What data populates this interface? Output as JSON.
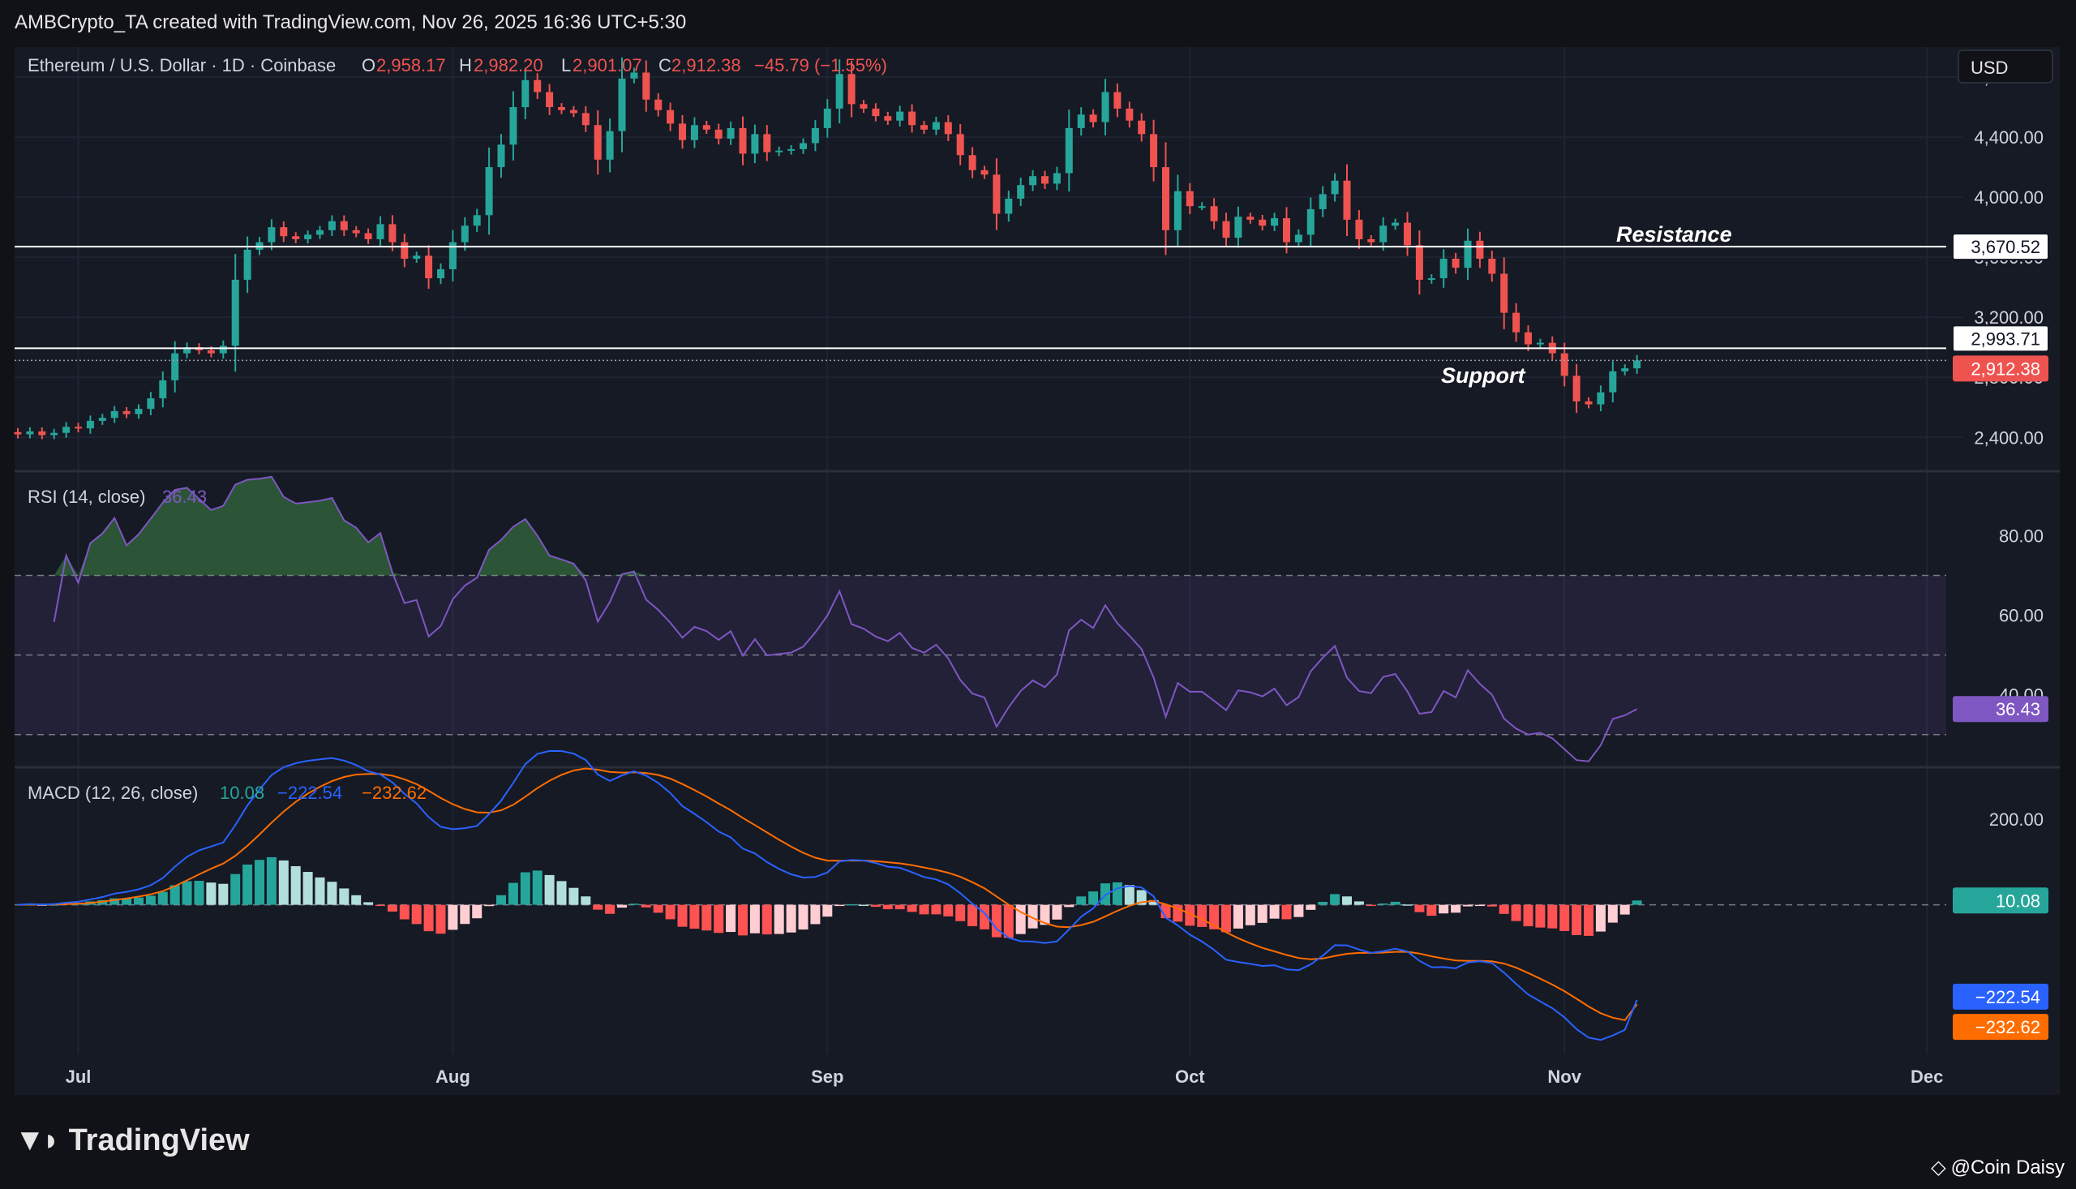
{
  "header": {
    "attribution": "AMBCrypto_TA created with TradingView.com, Nov 26, 2025 16:36 UTC+5:30",
    "currency_button": "USD"
  },
  "footer": {
    "brand": "TradingView",
    "credit": "@Coin Daisy"
  },
  "colors": {
    "background": "#111217",
    "pane": "#161a25",
    "up": "#26a69a",
    "down": "#ef5350",
    "rsi_line": "#7e57c2",
    "macd_line": "#2962ff",
    "signal_line": "#ff6d00",
    "hist_up_strong": "#26a69a",
    "hist_up_weak": "#b2dfdb",
    "hist_down_strong": "#ff5252",
    "hist_down_weak": "#ffcdd2"
  },
  "chart_data": [
    {
      "type": "candlestick",
      "legend": {
        "symbol": "Ethereum / U.S. Dollar · 1D · Coinbase",
        "o_label": "O",
        "o_value": "2,958.17",
        "h_label": "H",
        "h_value": "2,982.20",
        "l_label": "L",
        "l_value": "2,901.07",
        "c_label": "C",
        "c_value": "2,912.38",
        "change": "−45.79 (−1.55%)"
      },
      "x_ticks": [
        {
          "label": "Jul",
          "date": "2025-07-01"
        },
        {
          "label": "Aug",
          "date": "2025-08-01"
        },
        {
          "label": "Sep",
          "date": "2025-09-01"
        },
        {
          "label": "Oct",
          "date": "2025-10-01"
        },
        {
          "label": "Nov",
          "date": "2025-11-01"
        },
        {
          "label": "Dec",
          "date": "2025-12-01"
        }
      ],
      "y_ticks": [
        "2,400.00",
        "2,800.00",
        "3,200.00",
        "3,600.00",
        "4,000.00",
        "4,400.00",
        "4,800.00"
      ],
      "y_range": [
        2180,
        5000
      ],
      "levels": [
        {
          "name": "Resistance",
          "value": 3670.52,
          "label": "3,670.52"
        },
        {
          "name": "Support",
          "value": 2993.71,
          "label": "2,993.71"
        }
      ],
      "last_price": {
        "value": 2912.38,
        "label": "2,912.38"
      },
      "start_date": "2025-06-26",
      "closes": [
        2420,
        2440,
        2415,
        2430,
        2470,
        2460,
        2510,
        2530,
        2575,
        2555,
        2590,
        2660,
        2780,
        2960,
        3000,
        2980,
        2960,
        3010,
        3450,
        3650,
        3700,
        3800,
        3740,
        3720,
        3750,
        3780,
        3840,
        3780,
        3760,
        3720,
        3820,
        3700,
        3590,
        3610,
        3460,
        3520,
        3700,
        3810,
        3880,
        4200,
        4350,
        4600,
        4780,
        4700,
        4600,
        4580,
        4560,
        4480,
        4250,
        4440,
        4790,
        4830,
        4650,
        4580,
        4490,
        4380,
        4480,
        4450,
        4390,
        4460,
        4290,
        4420,
        4300,
        4310,
        4320,
        4360,
        4460,
        4590,
        4820,
        4620,
        4590,
        4540,
        4510,
        4570,
        4480,
        4450,
        4500,
        4420,
        4280,
        4180,
        4150,
        3890,
        3990,
        4080,
        4140,
        4090,
        4160,
        4460,
        4550,
        4500,
        4700,
        4590,
        4510,
        4420,
        4200,
        3780,
        4040,
        3940,
        3940,
        3840,
        3730,
        3870,
        3850,
        3810,
        3860,
        3700,
        3750,
        3920,
        4020,
        4110,
        3850,
        3720,
        3700,
        3810,
        3830,
        3680,
        3450,
        3460,
        3590,
        3530,
        3710,
        3590,
        3490,
        3230,
        3100,
        3020,
        3030,
        2960,
        2810,
        2640,
        2620,
        2700,
        2840,
        2860,
        2912.38
      ]
    },
    {
      "type": "line",
      "legend": {
        "title": "RSI (14, close)",
        "value": "36.43"
      },
      "y_ticks": [
        "40.00",
        "60.00",
        "80.00"
      ],
      "y_range": [
        22,
        96
      ],
      "bands": {
        "upper": 70,
        "middle": 50,
        "lower": 30
      },
      "last": {
        "value": 36.43,
        "label": "36.43"
      }
    },
    {
      "type": "line",
      "legend": {
        "title": "MACD (12, 26, close)",
        "hist": "10.08",
        "macd": "−222.54",
        "signal": "−232.62"
      },
      "y_ticks": [
        "−200.00",
        "200.00"
      ],
      "y_range": [
        -350,
        320
      ],
      "last": {
        "hist": 10.08,
        "hist_label": "10.08",
        "macd": -222.54,
        "macd_label": "−222.54",
        "signal": -232.62,
        "signal_label": "−232.62"
      },
      "series": [
        {
          "name": "MACD"
        },
        {
          "name": "Signal"
        },
        {
          "name": "Histogram"
        }
      ]
    }
  ]
}
